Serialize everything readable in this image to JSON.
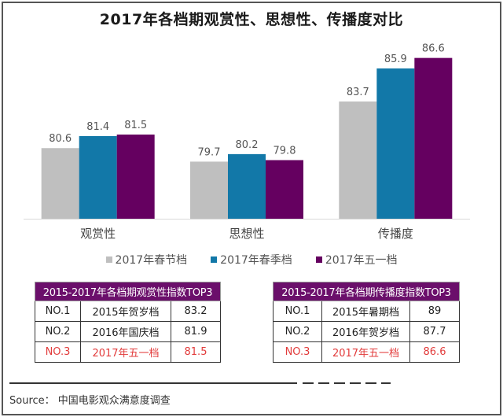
{
  "chart_data": {
    "type": "bar",
    "title": "2017年各档期观赏性、思想性、传播度对比",
    "categories": [
      "观赏性",
      "思想性",
      "传播度"
    ],
    "series": [
      {
        "name": "2017年春节档",
        "color": "#bfbfbf",
        "values": [
          80.6,
          79.7,
          83.7
        ]
      },
      {
        "name": "2017年春季档",
        "color": "#1278a8",
        "values": [
          81.4,
          80.2,
          85.9
        ]
      },
      {
        "name": "2017年五一档",
        "color": "#650060",
        "values": [
          81.5,
          79.8,
          86.6
        ]
      }
    ],
    "xlabel": "",
    "ylabel": "",
    "ylim": [
      75.9,
      87
    ],
    "grid": false,
    "data_labels": true,
    "legend_position": "bottom"
  },
  "tables": [
    {
      "title": "2015-2017年各档期观赏性指数TOP3",
      "rows": [
        {
          "rank": "NO.1",
          "period": "2015年贺岁档",
          "value": "83.2",
          "highlight": false
        },
        {
          "rank": "NO.2",
          "period": "2016年国庆档",
          "value": "81.9",
          "highlight": false
        },
        {
          "rank": "NO.3",
          "period": "2017年五一档",
          "value": "81.5",
          "highlight": true
        }
      ]
    },
    {
      "title": "2015-2017年各档期传播度指数TOP3",
      "rows": [
        {
          "rank": "NO.1",
          "period": "2015年暑期档",
          "value": "89",
          "highlight": false
        },
        {
          "rank": "NO.2",
          "period": "2016年贺岁档",
          "value": "87.7",
          "highlight": false
        },
        {
          "rank": "NO.3",
          "period": "2017年五一档",
          "value": "86.6",
          "highlight": true
        }
      ]
    }
  ],
  "colors": {
    "table_header": "#6b0f6b",
    "highlight_text": "#e23b3b"
  },
  "source": "Source： 中国电影观众满意度调查"
}
